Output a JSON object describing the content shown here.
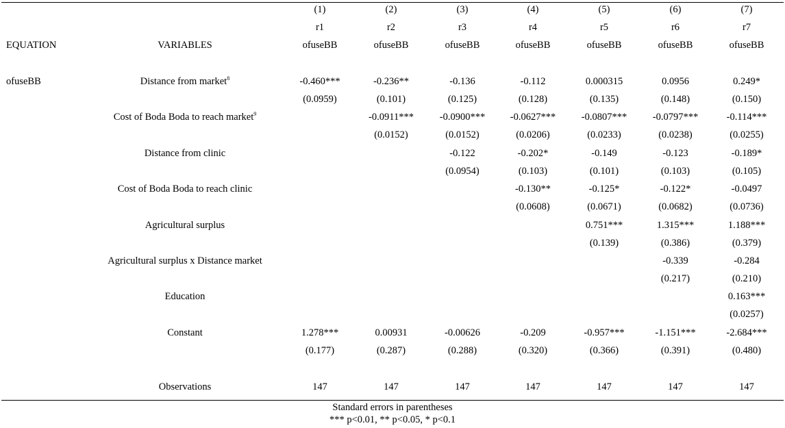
{
  "header": {
    "col_numbers": [
      "(1)",
      "(2)",
      "(3)",
      "(4)",
      "(5)",
      "(6)",
      "(7)"
    ],
    "model_names": [
      "r1",
      "r2",
      "r3",
      "r4",
      "r5",
      "r6",
      "r7"
    ],
    "dep_var": [
      "ofuseBB",
      "ofuseBB",
      "ofuseBB",
      "ofuseBB",
      "ofuseBB",
      "ofuseBB",
      "ofuseBB"
    ],
    "equation_label": "EQUATION",
    "variables_label": "VARIABLES"
  },
  "equation_name": "ofuseBB",
  "rows": [
    {
      "label": "Distance from market",
      "footnote": "8",
      "coef": [
        "-0.460***",
        "-0.236**",
        "-0.136",
        "-0.112",
        "0.000315",
        "0.0956",
        "0.249*"
      ],
      "se": [
        "(0.0959)",
        "(0.101)",
        "(0.125)",
        "(0.128)",
        "(0.135)",
        "(0.148)",
        "(0.150)"
      ]
    },
    {
      "label": "Cost of Boda Boda to reach market",
      "footnote": "9",
      "coef": [
        "",
        "-0.0911***",
        "-0.0900***",
        "-0.0627***",
        "-0.0807***",
        "-0.0797***",
        "-0.114***"
      ],
      "se": [
        "",
        "(0.0152)",
        "(0.0152)",
        "(0.0206)",
        "(0.0233)",
        "(0.0238)",
        "(0.0255)"
      ]
    },
    {
      "label": "Distance from clinic",
      "footnote": "",
      "coef": [
        "",
        "",
        "-0.122",
        "-0.202*",
        "-0.149",
        "-0.123",
        "-0.189*"
      ],
      "se": [
        "",
        "",
        "(0.0954)",
        "(0.103)",
        "(0.101)",
        "(0.103)",
        "(0.105)"
      ]
    },
    {
      "label": "Cost of Boda Boda to reach clinic",
      "footnote": "",
      "coef": [
        "",
        "",
        "",
        "-0.130**",
        "-0.125*",
        "-0.122*",
        "-0.0497"
      ],
      "se": [
        "",
        "",
        "",
        "(0.0608)",
        "(0.0671)",
        "(0.0682)",
        "(0.0736)"
      ]
    },
    {
      "label": "Agricultural surplus",
      "footnote": "",
      "coef": [
        "",
        "",
        "",
        "",
        "0.751***",
        "1.315***",
        "1.188***"
      ],
      "se": [
        "",
        "",
        "",
        "",
        "(0.139)",
        "(0.386)",
        "(0.379)"
      ]
    },
    {
      "label": "Agricultural surplus x Distance market",
      "footnote": "",
      "coef": [
        "",
        "",
        "",
        "",
        "",
        "-0.339",
        "-0.284"
      ],
      "se": [
        "",
        "",
        "",
        "",
        "",
        "(0.217)",
        "(0.210)"
      ]
    },
    {
      "label": "Education",
      "footnote": "",
      "coef": [
        "",
        "",
        "",
        "",
        "",
        "",
        "0.163***"
      ],
      "se": [
        "",
        "",
        "",
        "",
        "",
        "",
        "(0.0257)"
      ]
    },
    {
      "label": "Constant",
      "footnote": "",
      "coef": [
        "1.278***",
        "0.00931",
        "-0.00626",
        "-0.209",
        "-0.957***",
        "-1.151***",
        "-2.684***"
      ],
      "se": [
        "(0.177)",
        "(0.287)",
        "(0.288)",
        "(0.320)",
        "(0.366)",
        "(0.391)",
        "(0.480)"
      ]
    }
  ],
  "observations": {
    "label": "Observations",
    "values": [
      "147",
      "147",
      "147",
      "147",
      "147",
      "147",
      "147"
    ]
  },
  "notes": {
    "line1": "Standard errors in parentheses",
    "line2": "*** p<0.01, ** p<0.05, * p<0.1"
  }
}
